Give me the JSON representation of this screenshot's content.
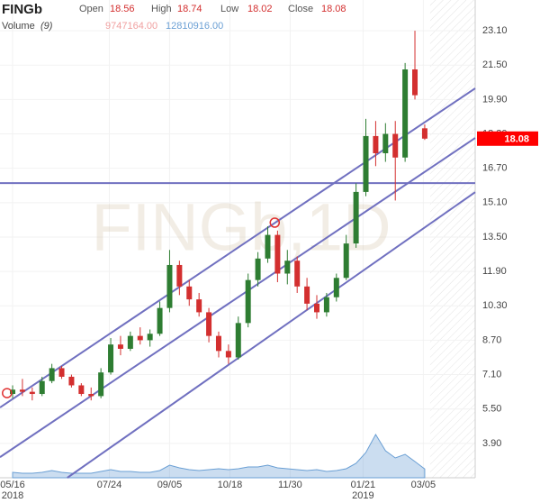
{
  "chart_data": {
    "type": "candlestick",
    "title": "FINGb",
    "watermark": "FINGb,1D",
    "header": {
      "open": "Open",
      "high": "High",
      "low": "Low",
      "close": "Close",
      "volume": "Volume",
      "volume_period": "(9)",
      "volume_value": {
        "value": 9747164,
        "label": "9747164.00"
      },
      "volume_ma": {
        "value": 12810916,
        "label": "12810916.00"
      }
    },
    "x": [
      "2018-05-16",
      "2018-05-23",
      "2018-05-30",
      "2018-06-06",
      "2018-06-13",
      "2018-06-20",
      "2018-06-27",
      "2018-07-04",
      "2018-07-11",
      "2018-07-18",
      "2018-07-25",
      "2018-08-01",
      "2018-08-08",
      "2018-08-15",
      "2018-08-22",
      "2018-08-29",
      "2018-09-05",
      "2018-09-12",
      "2018-09-19",
      "2018-09-26",
      "2018-10-03",
      "2018-10-10",
      "2018-10-17",
      "2018-10-24",
      "2018-10-31",
      "2018-11-07",
      "2018-11-14",
      "2018-11-21",
      "2018-11-28",
      "2018-12-05",
      "2018-12-12",
      "2018-12-19",
      "2018-12-26",
      "2019-01-02",
      "2019-01-09",
      "2019-01-16",
      "2019-01-23",
      "2019-01-30",
      "2019-02-06",
      "2019-02-13",
      "2019-02-20",
      "2019-02-27",
      "2019-03-06"
    ],
    "open": [
      6.2,
      6.4,
      6.3,
      6.2,
      6.8,
      7.4,
      7.0,
      6.6,
      6.2,
      6.1,
      7.2,
      8.5,
      8.3,
      8.9,
      8.7,
      9.0,
      10.2,
      12.2,
      11.2,
      10.6,
      10.0,
      8.9,
      8.2,
      7.9,
      9.5,
      11.5,
      12.5,
      13.6,
      11.8,
      12.4,
      11.2,
      10.4,
      10.0,
      10.7,
      11.6,
      13.2,
      15.6,
      18.2,
      17.4,
      18.3,
      17.2,
      21.3,
      18.56
    ],
    "high": [
      6.6,
      6.9,
      6.5,
      7.0,
      7.6,
      7.5,
      7.1,
      6.7,
      6.5,
      7.4,
      8.8,
      8.9,
      9.1,
      9.3,
      9.2,
      10.5,
      12.9,
      12.4,
      11.5,
      10.9,
      10.2,
      9.1,
      8.5,
      9.8,
      11.8,
      12.8,
      14.0,
      13.8,
      12.9,
      12.6,
      11.6,
      10.8,
      10.9,
      11.8,
      13.6,
      16.0,
      19.0,
      18.9,
      18.8,
      18.9,
      21.6,
      23.1,
      18.74
    ],
    "low": [
      6.0,
      6.1,
      5.9,
      6.1,
      6.7,
      6.9,
      6.5,
      6.1,
      5.9,
      6.0,
      7.1,
      8.0,
      8.2,
      8.5,
      8.4,
      8.9,
      10.0,
      10.8,
      10.3,
      9.8,
      8.6,
      7.9,
      7.6,
      7.8,
      9.3,
      11.2,
      12.3,
      11.4,
      11.3,
      10.9,
      10.1,
      9.7,
      9.8,
      10.5,
      11.5,
      13.0,
      15.4,
      16.8,
      17.0,
      15.2,
      17.0,
      19.9,
      18.02
    ],
    "close": [
      6.4,
      6.3,
      6.2,
      6.8,
      7.4,
      7.0,
      6.6,
      6.2,
      6.1,
      7.2,
      8.5,
      8.3,
      8.9,
      8.7,
      9.0,
      10.2,
      12.2,
      11.2,
      10.6,
      10.0,
      8.9,
      8.2,
      7.9,
      9.5,
      11.5,
      12.5,
      13.6,
      11.8,
      12.4,
      11.2,
      10.4,
      10.0,
      10.7,
      11.6,
      13.2,
      15.6,
      18.2,
      17.4,
      18.3,
      17.2,
      21.3,
      20.1,
      18.08
    ],
    "volume": [
      6000000,
      5000000,
      5000000,
      6000000,
      8000000,
      6000000,
      5000000,
      5000000,
      5000000,
      7000000,
      9000000,
      7000000,
      7000000,
      6000000,
      6000000,
      8000000,
      14000000,
      11000000,
      9000000,
      8000000,
      9000000,
      10000000,
      9000000,
      10000000,
      12000000,
      12000000,
      14000000,
      11000000,
      10000000,
      9000000,
      8000000,
      9000000,
      7000000,
      8000000,
      10000000,
      16000000,
      28000000,
      48000000,
      30000000,
      22000000,
      26000000,
      18000000,
      9747164
    ],
    "up_color": "#2e7d32",
    "down_color": "#d32f2f",
    "volume_color": "#6a9fd4",
    "xlim": [
      "2018-05-07",
      "2019-04-11"
    ],
    "xticks": [
      {
        "value": "2018-05-16",
        "label": "05/16"
      },
      {
        "value": "2018-07-24",
        "label": "07/24"
      },
      {
        "value": "2018-09-05",
        "label": "09/05"
      },
      {
        "value": "2018-10-18",
        "label": "10/18"
      },
      {
        "value": "2018-11-30",
        "label": "11/30"
      },
      {
        "value": "2019-01-21",
        "label": "01/21"
      },
      {
        "value": "2019-03-05",
        "label": "03/05"
      }
    ],
    "year_labels": [
      {
        "value": "2018-05-16",
        "label": "2018"
      },
      {
        "value": "2019-01-21",
        "label": "2019"
      }
    ],
    "ylim": [
      2.3,
      24.53
    ],
    "yticks": [
      {
        "value": 23.1,
        "label": "23.10"
      },
      {
        "value": 21.5,
        "label": "21.50"
      },
      {
        "value": 19.9,
        "label": "19.90"
      },
      {
        "value": 18.3,
        "label": "18.30"
      },
      {
        "value": 16.7,
        "label": "16.70"
      },
      {
        "value": 15.1,
        "label": "15.10"
      },
      {
        "value": 13.5,
        "label": "13.50"
      },
      {
        "value": 11.9,
        "label": "11.90"
      },
      {
        "value": 10.3,
        "label": "10.30"
      },
      {
        "value": 8.7,
        "label": "8.70"
      },
      {
        "value": 7.1,
        "label": "7.10"
      },
      {
        "value": 5.5,
        "label": "5.50"
      },
      {
        "value": 3.9,
        "label": "3.90"
      }
    ],
    "vlim": [
      0,
      60000000
    ],
    "grid": true,
    "trend_lines": [
      {
        "x": [
          "2018-05-07",
          "2019-04-11"
        ],
        "y": [
          5.57,
          20.42
        ]
      },
      {
        "x": [
          "2018-05-07",
          "2019-04-11"
        ],
        "y": [
          3.26,
          18.11
        ]
      },
      {
        "x": [
          "2018-06-24",
          "2019-04-11"
        ],
        "y": [
          2.3,
          15.59
        ]
      }
    ],
    "line_color": "#7070c0",
    "hline": 16.01,
    "markers": [
      {
        "x": "2018-05-12",
        "y": 6.24
      },
      {
        "x": "2018-11-19",
        "y": 14.17
      }
    ],
    "marker_color": "#e03030"
  }
}
